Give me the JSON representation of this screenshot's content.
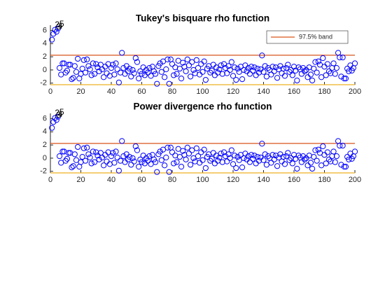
{
  "chart_data": [
    {
      "type": "scatter",
      "title": "Tukey's bisquare rho function",
      "color": "#0000ff",
      "x": [
        1,
        2,
        3,
        4,
        5,
        6,
        7,
        8,
        9,
        10,
        11,
        12,
        13,
        14,
        15,
        16,
        17,
        18,
        19,
        20,
        21,
        22,
        23,
        24,
        25,
        26,
        27,
        28,
        29,
        30,
        31,
        32,
        33,
        34,
        35,
        36,
        37,
        38,
        39,
        40,
        41,
        42,
        43,
        44,
        45,
        46,
        47,
        48,
        49,
        50,
        51,
        52,
        53,
        54,
        55,
        56,
        57,
        58,
        59,
        60,
        61,
        62,
        63,
        64,
        65,
        66,
        67,
        68,
        69,
        70,
        71,
        72,
        73,
        74,
        75,
        76,
        77,
        78,
        79,
        80,
        81,
        82,
        83,
        84,
        85,
        86,
        87,
        88,
        89,
        90,
        91,
        92,
        93,
        94,
        95,
        96,
        97,
        98,
        99,
        100,
        101,
        102,
        103,
        104,
        105,
        106,
        107,
        108,
        109,
        110,
        111,
        112,
        113,
        114,
        115,
        116,
        117,
        118,
        119,
        120,
        121,
        122,
        123,
        124,
        125,
        126,
        127,
        128,
        129,
        130,
        131,
        132,
        133,
        134,
        135,
        136,
        137,
        138,
        139,
        140,
        141,
        142,
        143,
        144,
        145,
        146,
        147,
        148,
        149,
        150,
        151,
        152,
        153,
        154,
        155,
        156,
        157,
        158,
        159,
        160,
        161,
        162,
        163,
        164,
        165,
        166,
        167,
        168,
        169,
        170,
        171,
        172,
        173,
        174,
        175,
        176,
        177,
        178,
        179,
        180,
        181,
        182,
        183,
        184,
        185,
        186,
        187,
        188,
        189,
        190,
        191,
        192,
        193,
        194,
        195,
        196,
        197,
        198,
        199,
        200
      ],
      "values": [
        4.6,
        5.5,
        6.1,
        5.8,
        6.3,
        0.3,
        -0.7,
        1.0,
        1.0,
        -0.4,
        -0.1,
        0.8,
        0.8,
        -1.4,
        -1.2,
        0.6,
        -0.3,
        1.7,
        -1.3,
        -0.6,
        0.2,
        1.5,
        -0.4,
        1.6,
        0.6,
        0.1,
        -0.8,
        1.0,
        -0.6,
        0.9,
        0.4,
        -0.2,
        0.8,
        0.1,
        -1.1,
        0.5,
        -0.5,
        0.9,
        -0.9,
        0.3,
        0.8,
        -0.7,
        1.0,
        0.1,
        -1.9,
        -0.4,
        2.6,
        0.3,
        -0.6,
        0.6,
        -0.2,
        0.2,
        -1.0,
        0.0,
        -0.5,
        1.8,
        1.2,
        -1.3,
        -0.2,
        -0.6,
        0.4,
        -0.8,
        0.0,
        -0.4,
        0.3,
        -0.9,
        0.5,
        -0.2,
        -0.6,
        -2.1,
        0.6,
        1.0,
        -0.3,
        1.3,
        -1.1,
        0.1,
        1.6,
        -2.1,
        1.6,
        0.9,
        -0.8,
        0.4,
        -0.6,
        1.4,
        0.2,
        -1.3,
        1.1,
        0.5,
        -0.2,
        1.6,
        0.7,
        -1.0,
        1.2,
        0.0,
        -0.5,
        1.5,
        0.3,
        -0.7,
        0.9,
        -0.3,
        1.3,
        -1.5,
        0.2,
        0.6,
        -0.4,
        -0.1,
        0.8,
        -0.8,
        0.4,
        -0.4,
        0.1,
        0.7,
        -0.6,
        0.9,
        0.3,
        -0.5,
        0.6,
        0.0,
        1.2,
        -0.9,
        0.4,
        -1.5,
        0.2,
        -0.3,
        0.5,
        -1.4,
        0.0,
        0.7,
        -0.2,
        0.3,
        -0.6,
        0.5,
        -0.1,
        0.4,
        -0.8,
        0.2,
        -0.4,
        0.1,
        2.2,
        -0.3,
        0.6,
        -1.0,
        0.3,
        0.0,
        -0.7,
        0.5,
        -0.2,
        0.4,
        -1.2,
        0.1,
        0.6,
        -0.5,
        0.2,
        -0.9,
        0.3,
        0.8,
        -0.3,
        0.0,
        -0.8,
        0.5,
        -0.1,
        -1.6,
        0.4,
        0.1,
        -0.6,
        0.3,
        -0.2,
        0.0,
        -1.1,
        0.4,
        -0.7,
        -1.6,
        0.2,
        1.2,
        -0.4,
        1.3,
        0.8,
        -1.1,
        1.8,
        0.5,
        -0.8,
        0.9,
        -0.2,
        -0.5,
        0.3,
        1.0,
        -0.6,
        0.3,
        2.6,
        1.9,
        -1.0,
        1.9,
        -1.3,
        -1.3,
        0.2,
        -0.2,
        0.7,
        -0.1,
        0.3,
        1.0
      ],
      "bands": [
        {
          "name": "97.5% band",
          "value": 2.24,
          "color": "#d95319"
        },
        {
          "value": -2.24,
          "color": "#edb120"
        }
      ],
      "annotations": [
        {
          "text": "2",
          "x": 2,
          "y": 6.6
        },
        {
          "text": "3",
          "x": 3,
          "y": 6.3
        },
        {
          "text": "4",
          "x": 4,
          "y": 6.4
        },
        {
          "text": "5",
          "x": 5,
          "y": 6.7
        }
      ],
      "xlim": [
        0,
        200
      ],
      "xticks": [
        0,
        20,
        40,
        60,
        80,
        100,
        120,
        140,
        160,
        180,
        200
      ],
      "ylim": [
        -2.24,
        6.8
      ],
      "yticks": [
        -2,
        0,
        2,
        4,
        6
      ],
      "legend": "northeast"
    },
    {
      "type": "scatter",
      "title": "Power divergence rho function",
      "color": "#0000ff",
      "x": [
        1,
        2,
        3,
        4,
        5,
        6,
        7,
        8,
        9,
        10,
        11,
        12,
        13,
        14,
        15,
        16,
        17,
        18,
        19,
        20,
        21,
        22,
        23,
        24,
        25,
        26,
        27,
        28,
        29,
        30,
        31,
        32,
        33,
        34,
        35,
        36,
        37,
        38,
        39,
        40,
        41,
        42,
        43,
        44,
        45,
        46,
        47,
        48,
        49,
        50,
        51,
        52,
        53,
        54,
        55,
        56,
        57,
        58,
        59,
        60,
        61,
        62,
        63,
        64,
        65,
        66,
        67,
        68,
        69,
        70,
        71,
        72,
        73,
        74,
        75,
        76,
        77,
        78,
        79,
        80,
        81,
        82,
        83,
        84,
        85,
        86,
        87,
        88,
        89,
        90,
        91,
        92,
        93,
        94,
        95,
        96,
        97,
        98,
        99,
        100,
        101,
        102,
        103,
        104,
        105,
        106,
        107,
        108,
        109,
        110,
        111,
        112,
        113,
        114,
        115,
        116,
        117,
        118,
        119,
        120,
        121,
        122,
        123,
        124,
        125,
        126,
        127,
        128,
        129,
        130,
        131,
        132,
        133,
        134,
        135,
        136,
        137,
        138,
        139,
        140,
        141,
        142,
        143,
        144,
        145,
        146,
        147,
        148,
        149,
        150,
        151,
        152,
        153,
        154,
        155,
        156,
        157,
        158,
        159,
        160,
        161,
        162,
        163,
        164,
        165,
        166,
        167,
        168,
        169,
        170,
        171,
        172,
        173,
        174,
        175,
        176,
        177,
        178,
        179,
        180,
        181,
        182,
        183,
        184,
        185,
        186,
        187,
        188,
        189,
        190,
        191,
        192,
        193,
        194,
        195,
        196,
        197,
        198,
        199,
        200
      ],
      "values": [
        4.6,
        5.5,
        6.1,
        5.8,
        6.3,
        0.3,
        -0.7,
        1.0,
        1.0,
        -0.4,
        -0.1,
        0.8,
        0.8,
        -1.4,
        -1.2,
        0.6,
        -0.3,
        1.7,
        -1.3,
        -0.6,
        0.2,
        1.5,
        -0.4,
        1.6,
        0.6,
        0.1,
        -0.8,
        1.0,
        -0.6,
        0.9,
        0.4,
        -0.2,
        0.8,
        0.1,
        -1.1,
        0.5,
        -0.5,
        0.9,
        -0.9,
        0.3,
        0.8,
        -0.7,
        1.0,
        0.1,
        -1.9,
        -0.4,
        2.6,
        0.3,
        -0.6,
        0.6,
        -0.2,
        0.2,
        -1.0,
        0.0,
        -0.5,
        1.8,
        1.2,
        -1.3,
        -0.2,
        -0.6,
        0.4,
        -0.8,
        0.0,
        -0.4,
        0.3,
        -0.9,
        0.5,
        -0.2,
        -0.6,
        -2.1,
        0.6,
        1.0,
        -0.3,
        1.3,
        -1.1,
        0.1,
        1.6,
        -2.1,
        1.6,
        0.9,
        -0.8,
        0.4,
        -0.6,
        1.4,
        0.2,
        -1.3,
        1.1,
        0.5,
        -0.2,
        1.6,
        0.7,
        -1.0,
        1.2,
        0.0,
        -0.5,
        1.5,
        0.3,
        -0.7,
        0.9,
        -0.3,
        1.3,
        -1.5,
        0.2,
        0.6,
        -0.4,
        -0.1,
        0.8,
        -0.8,
        0.4,
        -0.4,
        0.1,
        0.7,
        -0.6,
        0.9,
        0.3,
        -0.5,
        0.6,
        0.0,
        1.2,
        -0.9,
        0.4,
        -1.5,
        0.2,
        -0.3,
        0.5,
        -1.4,
        0.0,
        0.7,
        -0.2,
        0.3,
        -0.6,
        0.5,
        -0.1,
        0.4,
        -0.8,
        0.2,
        -0.4,
        0.1,
        2.2,
        -0.3,
        0.6,
        -1.0,
        0.3,
        0.0,
        -0.7,
        0.5,
        -0.2,
        0.4,
        -1.2,
        0.1,
        0.6,
        -0.5,
        0.2,
        -0.9,
        0.3,
        0.8,
        -0.3,
        0.0,
        -0.8,
        0.5,
        -0.1,
        -1.6,
        0.4,
        0.1,
        -0.6,
        0.3,
        -0.2,
        0.0,
        -1.1,
        0.4,
        -0.7,
        -1.6,
        0.2,
        1.2,
        -0.4,
        1.3,
        0.8,
        -1.1,
        1.8,
        0.5,
        -0.8,
        0.9,
        -0.2,
        -0.5,
        0.3,
        1.0,
        -0.6,
        0.3,
        2.6,
        1.9,
        -1.0,
        1.9,
        -1.3,
        -1.3,
        0.2,
        -0.2,
        0.7,
        -0.1,
        0.3,
        1.0
      ],
      "bands": [
        {
          "value": 2.24,
          "color": "#d95319"
        },
        {
          "value": -2.24,
          "color": "#edb120"
        }
      ],
      "annotations": [
        {
          "text": "2",
          "x": 2,
          "y": 6.6
        },
        {
          "text": "3",
          "x": 3,
          "y": 6.3
        },
        {
          "text": "4",
          "x": 4,
          "y": 6.4
        },
        {
          "text": "5",
          "x": 5,
          "y": 6.7
        }
      ],
      "xlim": [
        0,
        200
      ],
      "xticks": [
        0,
        20,
        40,
        60,
        80,
        100,
        120,
        140,
        160,
        180,
        200
      ],
      "ylim": [
        -2.24,
        6.8
      ],
      "yticks": [
        -2,
        0,
        2,
        4,
        6
      ]
    }
  ]
}
